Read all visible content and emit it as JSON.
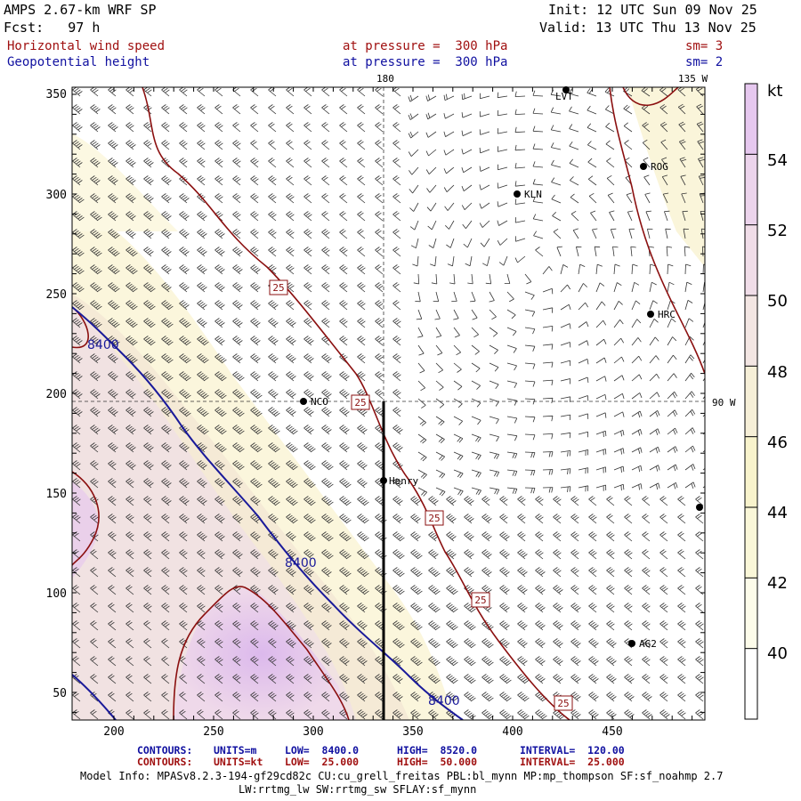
{
  "header": {
    "model": "AMPS 2.67-km WRF SP",
    "fcst": "Fcst:   97 h",
    "init": "Init: 12 UTC Sun 09 Nov 25",
    "valid": "Valid: 13 UTC Thu 13 Nov 25",
    "field1_name": "Horizontal wind speed",
    "field1_level": "at pressure =  300 hPa",
    "field1_sm": "sm= 3",
    "field2_name": "Geopotential height",
    "field2_level": "at pressure =  300 hPa",
    "field2_sm": "sm= 2"
  },
  "map": {
    "meridian_top_left": "180",
    "meridian_top_right": "135 W",
    "meridian_right": "90 W",
    "x_ticks": [
      "200",
      "250",
      "300",
      "350",
      "400",
      "450"
    ],
    "y_ticks": [
      "350",
      "300",
      "250",
      "200",
      "150",
      "100",
      "50"
    ],
    "stations": [
      "LVT",
      "ROG",
      "KLN",
      "HRC",
      "NCO",
      "Henry",
      "AG2"
    ],
    "height_labels": [
      "8400",
      "8400",
      "8400"
    ],
    "speed_labels": [
      "25",
      "25",
      "25",
      "25",
      "25"
    ]
  },
  "colorbar": {
    "unit": "kt",
    "labels": [
      "54",
      "52",
      "50",
      "48",
      "46",
      "44",
      "42",
      "40"
    ],
    "colors": [
      "#e6c8ef",
      "#ecd4ec",
      "#f0dde8",
      "#f3e6e3",
      "#f6efd7",
      "#f8f3cc",
      "#faf7d8",
      "#fdfcea",
      "#ffffff"
    ]
  },
  "footer": {
    "row1_label": "CONTOURS:",
    "row1_units": "UNITS=m",
    "row1_low": "LOW=  8400.0",
    "row1_high": "HIGH=  8520.0",
    "row1_interval": "INTERVAL=  120.00",
    "row2_label": "CONTOURS:",
    "row2_units": "UNITS=kt",
    "row2_low": "LOW=  25.000",
    "row2_high": "HIGH=  50.000",
    "row2_interval": "INTERVAL=  25.000",
    "info1": "Model Info: MPASv8.2.3-194-gf29cd82c CU:cu_grell_freitas PBL:bl_mynn MP:mp_thompson SF:sf_noahmp 2.7",
    "info2": "LW:rrtmg_lw SW:rrtmg_sw SFLAY:sf_mynn"
  },
  "colors": {
    "height_contour": "#1a1a9a",
    "speed_contour": "#8b1010",
    "red_text": "#a01010",
    "blue_text": "#1010a0"
  }
}
